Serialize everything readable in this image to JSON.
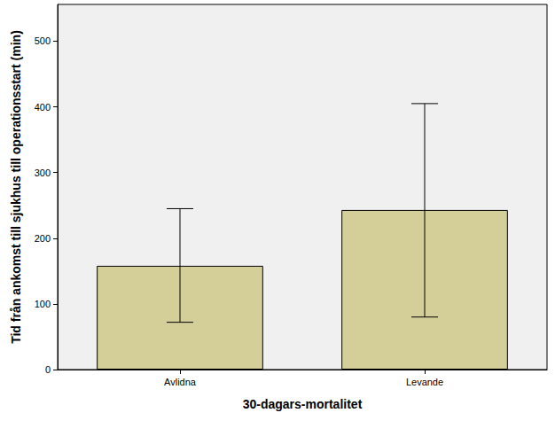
{
  "chart_data": {
    "type": "bar",
    "x_label": "30-dagars-mortalitet",
    "y_label": "Tid från ankomst till sjukhus till operationsstart (min)",
    "categories": [
      "Avlidna",
      "Levande"
    ],
    "values": [
      158,
      243
    ],
    "error_low": [
      72,
      80
    ],
    "error_high": [
      245,
      405
    ],
    "color": "#d4cf98",
    "ylim": [
      0,
      556
    ],
    "yticks": [
      0,
      100,
      200,
      300,
      400,
      500
    ],
    "grid": false
  }
}
